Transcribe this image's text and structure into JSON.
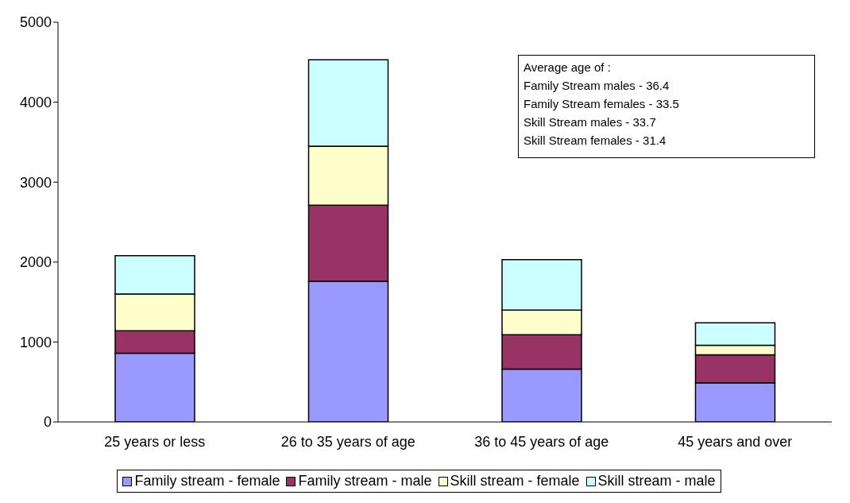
{
  "chart_data": {
    "type": "bar",
    "stacked": true,
    "categories": [
      "25 years or less",
      "26 to  35 years of age",
      "36 to  45 years of age",
      "45 years and over"
    ],
    "series": [
      {
        "name": "Family stream - female",
        "color": "#9999ff",
        "values": [
          860,
          1760,
          660,
          490
        ]
      },
      {
        "name": "Family stream - male",
        "color": "#993366",
        "values": [
          280,
          950,
          430,
          350
        ]
      },
      {
        "name": "Skill stream - female",
        "color": "#ffffcc",
        "values": [
          460,
          740,
          310,
          120
        ]
      },
      {
        "name": "Skill stream - male",
        "color": "#ccffff",
        "values": [
          480,
          1080,
          630,
          280
        ]
      }
    ],
    "ylim": [
      0,
      5000
    ],
    "yticks": [
      0,
      1000,
      2000,
      3000,
      4000,
      5000
    ],
    "grid": false,
    "legend": "bottom",
    "annotations": [
      "Average age of :",
      "Family Stream males - 36.4",
      "Family Stream females - 33.5",
      "Skill Stream males - 33.7",
      "Skill Stream females - 31.4"
    ]
  }
}
